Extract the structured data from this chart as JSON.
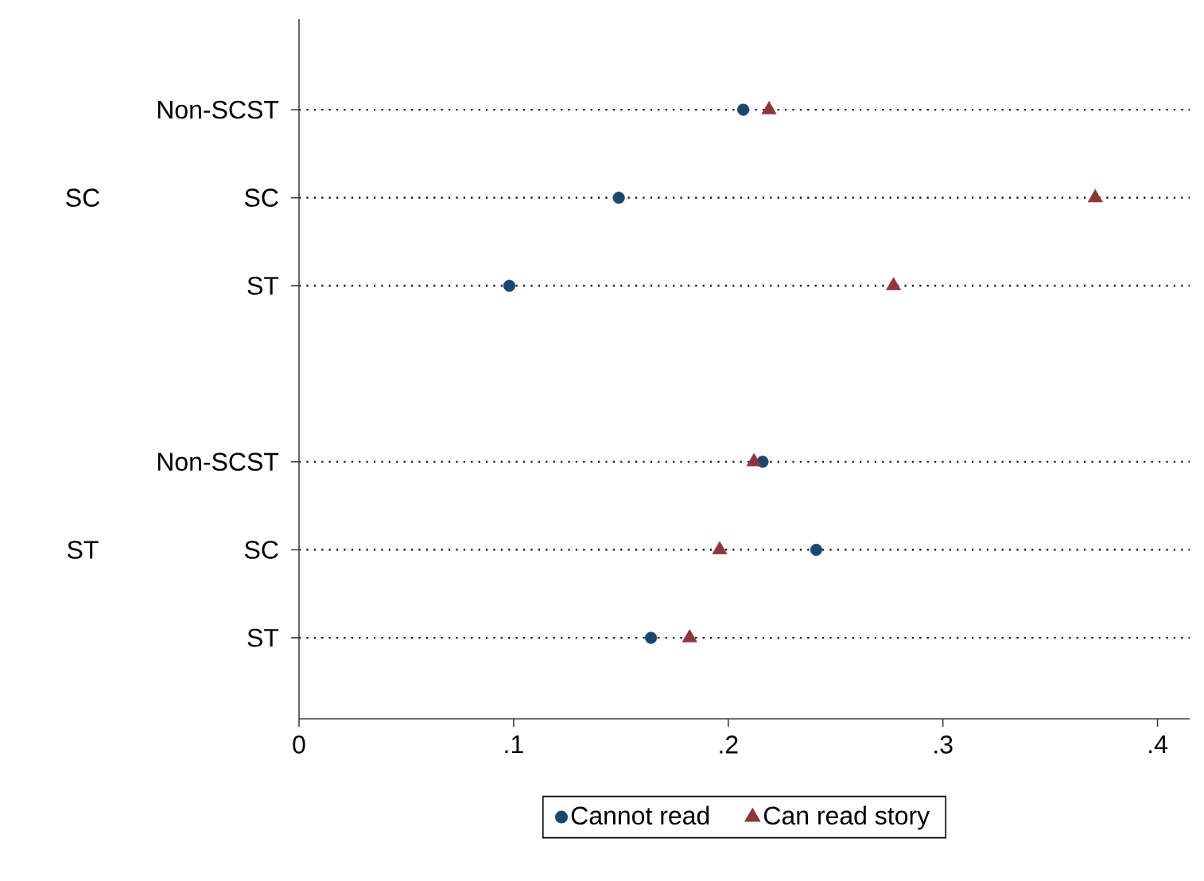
{
  "chart_data": {
    "type": "scatter",
    "orientation": "horizontal",
    "categories": [
      "Non-SCST",
      "SC",
      "ST",
      null,
      "Non-SCST",
      "SC",
      "ST"
    ],
    "annotations": [
      "SC",
      "ST"
    ],
    "series": [
      {
        "name": "Cannot read",
        "color": "#1a476f",
        "marker": "circle",
        "values": [
          0.207,
          0.149,
          0.098,
          null,
          0.216,
          0.241,
          0.164
        ]
      },
      {
        "name": "Can read story",
        "color": "#90353b",
        "marker": "triangle",
        "values": [
          0.219,
          0.371,
          0.277,
          null,
          0.212,
          0.196,
          0.182
        ]
      }
    ],
    "xlim": [
      0,
      0.415
    ],
    "xticks": [
      0,
      {
        "value": 0.1,
        "label": ".1"
      },
      {
        "value": 0.2,
        "label": ".2"
      },
      {
        "value": 0.3,
        "label": ".3"
      },
      {
        "value": 0.4,
        "label": ".4"
      }
    ],
    "grid": "y",
    "line_style": "dotted",
    "legend": "bottom"
  }
}
